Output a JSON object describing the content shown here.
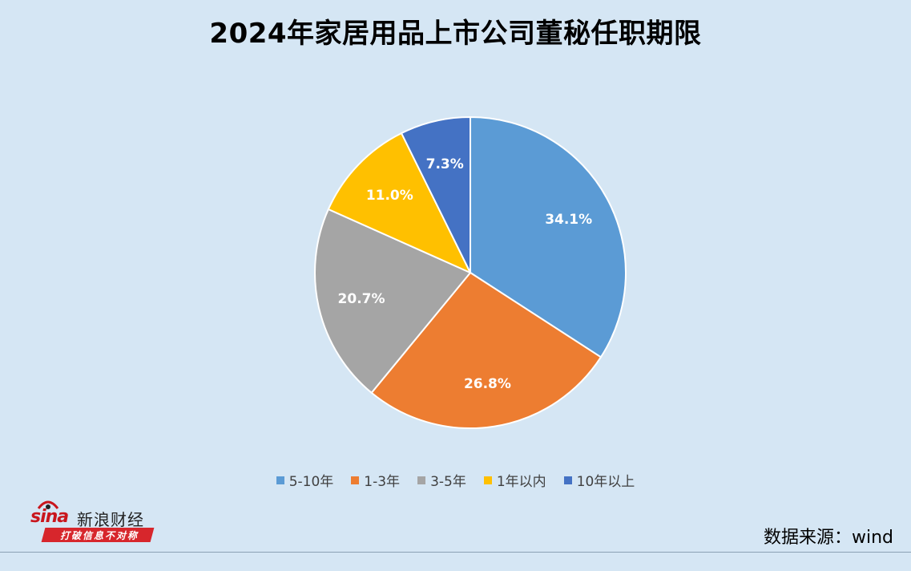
{
  "chart_data": {
    "type": "pie",
    "title": "2024年家居用品上市公司董秘任职期限",
    "slices": [
      {
        "label": "5-10年",
        "value": 34.1,
        "display": "34.1%",
        "color": "#5b9bd5"
      },
      {
        "label": "1-3年",
        "value": 26.8,
        "display": "26.8%",
        "color": "#ed7d31"
      },
      {
        "label": "3-5年",
        "value": 20.7,
        "display": "20.7%",
        "color": "#a5a5a5"
      },
      {
        "label": "1年以内",
        "value": 11.0,
        "display": "11.0%",
        "color": "#ffc000"
      },
      {
        "label": "10年以上",
        "value": 7.3,
        "display": "7.3%",
        "color": "#4472c4"
      }
    ],
    "legend_position": "bottom"
  },
  "source_text": "数据来源：wind",
  "logo": {
    "brand": "sina",
    "name": "新浪财经",
    "tagline": "打破信息不对称"
  },
  "colors": {
    "background": "#d5e6f4",
    "slice_border": "#ffffff"
  }
}
